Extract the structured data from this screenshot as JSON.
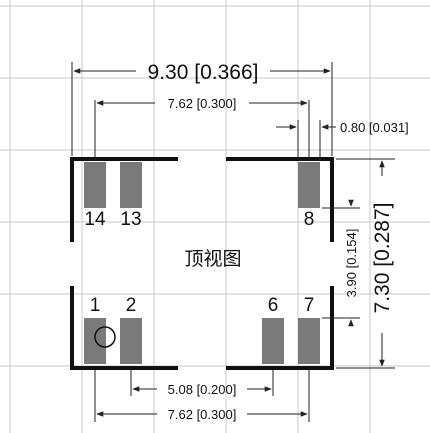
{
  "colors": {
    "grid": "#c8c8c8",
    "outline": "#111111",
    "pad": "#7a7a7a",
    "dimension_line": "#222222",
    "background": "#ffffff"
  },
  "view_label": "顶视图",
  "dimensions": {
    "overall_width": "9.30 [0.366]",
    "pad_span_top": "7.62 [0.300]",
    "pad_width": "0.80 [0.031]",
    "overall_height": "7.30 [0.287]",
    "pad_row_gap": "3.90 [0.154]",
    "pad_span_bottom_inner": "5.08 [0.200]",
    "pad_span_bottom": "7.62 [0.300]"
  },
  "pins": {
    "p14": "14",
    "p13": "13",
    "p8": "8",
    "p1": "1",
    "p2": "2",
    "p6": "6",
    "p7": "7"
  }
}
